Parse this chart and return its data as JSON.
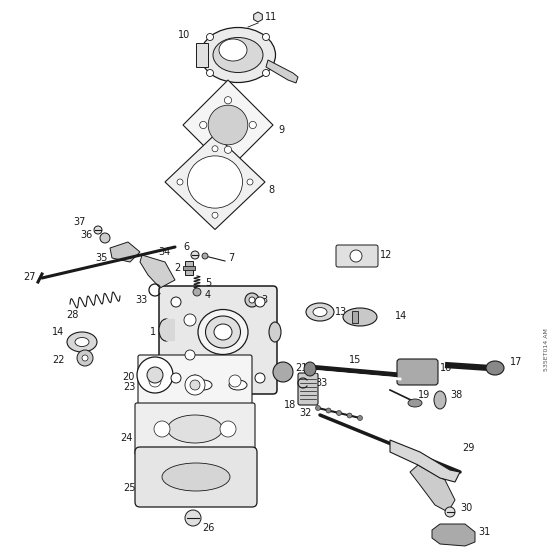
{
  "bg_color": "#ffffff",
  "line_color": "#1a1a1a",
  "watermark": "535ET014 AM",
  "figsize": [
    5.6,
    5.6
  ],
  "dpi": 100
}
